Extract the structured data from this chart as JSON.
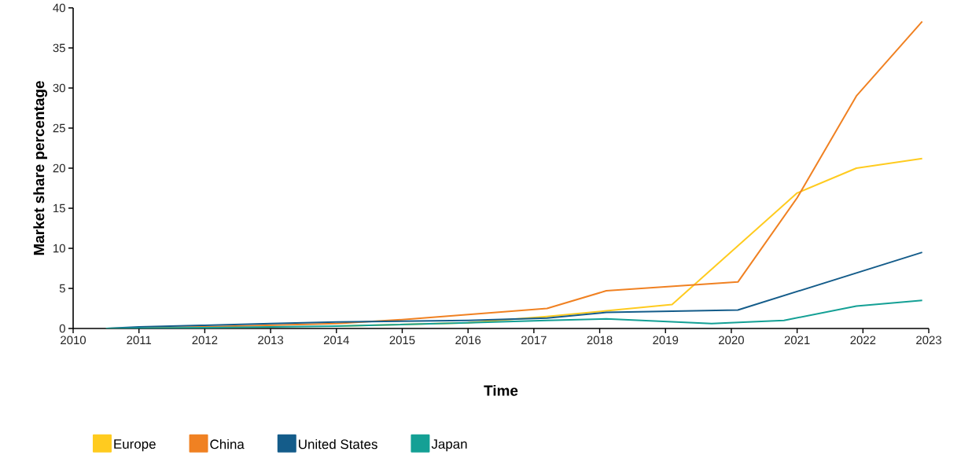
{
  "chart_data": {
    "type": "line",
    "xlabel": "Time",
    "ylabel": "Market share percentage",
    "xlim": [
      2010,
      2023
    ],
    "ylim": [
      0,
      40
    ],
    "xticks": [
      2010,
      2011,
      2012,
      2013,
      2014,
      2015,
      2016,
      2017,
      2018,
      2019,
      2020,
      2021,
      2022,
      2023
    ],
    "yticks": [
      0,
      5,
      10,
      15,
      20,
      25,
      30,
      35,
      40
    ],
    "legend": "bottom",
    "series": [
      {
        "name": "Europe",
        "color": "#ffcb1f",
        "x": [
          2014,
          2016,
          2017.2,
          2018.1,
          2019.1,
          2021.0,
          2021.9,
          2022.9
        ],
        "values": [
          0.3,
          0.7,
          1.5,
          2.2,
          3.0,
          16.9,
          20.0,
          21.2
        ]
      },
      {
        "name": "China",
        "color": "#f08122",
        "x": [
          2010.5,
          2012,
          2014,
          2015,
          2017.2,
          2018.1,
          2020.1,
          2021.0,
          2021.9,
          2022.9
        ],
        "values": [
          0,
          0.2,
          0.6,
          1.1,
          2.5,
          4.7,
          5.8,
          16.3,
          29.0,
          38.3
        ]
      },
      {
        "name": "United States",
        "color": "#145c8a",
        "x": [
          2010.5,
          2011,
          2012,
          2013,
          2014,
          2016,
          2017.2,
          2018.1,
          2020.1,
          2022.9
        ],
        "values": [
          0,
          0.2,
          0.4,
          0.6,
          0.8,
          1.0,
          1.3,
          2.0,
          2.3,
          9.5
        ]
      },
      {
        "name": "Japan",
        "color": "#14a095",
        "x": [
          2010.5,
          2012,
          2014,
          2016,
          2017.2,
          2018.1,
          2019.7,
          2020.8,
          2021.9,
          2022.9
        ],
        "values": [
          0,
          0.1,
          0.3,
          0.7,
          1.0,
          1.2,
          0.6,
          1.0,
          2.8,
          3.5
        ]
      }
    ]
  }
}
